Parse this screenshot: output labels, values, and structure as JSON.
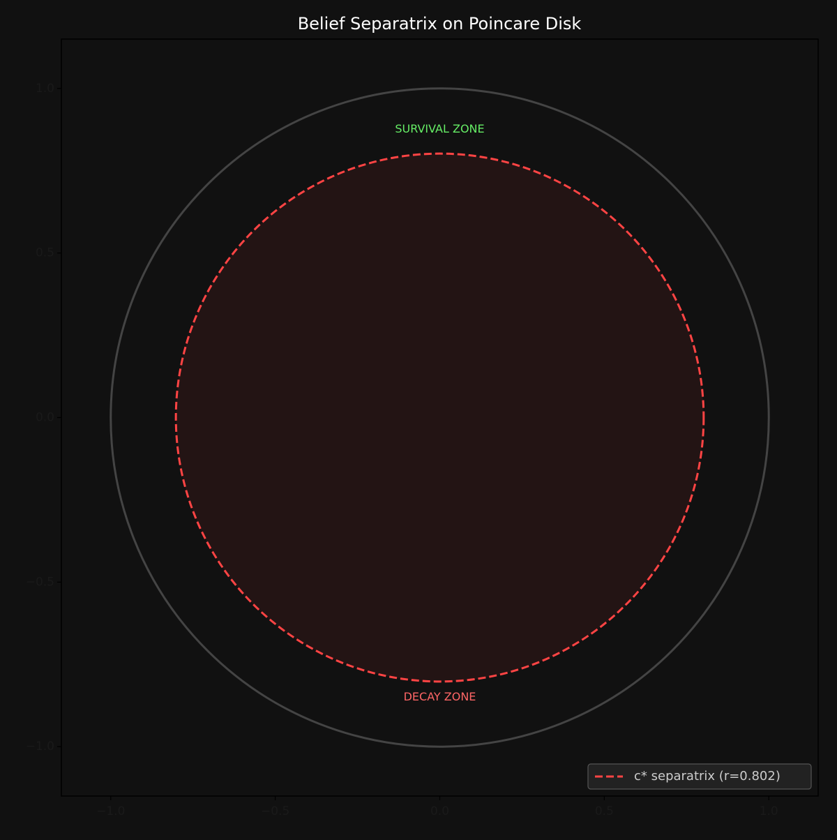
{
  "chart_data": {
    "type": "disk",
    "title": "Belief Separatrix on Poincare Disk",
    "xlim": [
      -1.15,
      1.15
    ],
    "ylim": [
      -1.15,
      1.15
    ],
    "xticks": [
      {
        "value": -1,
        "label": "−1.0"
      },
      {
        "value": -0.5,
        "label": "−0.5"
      },
      {
        "value": 0,
        "label": "0.0"
      },
      {
        "value": 0.5,
        "label": "0.5"
      },
      {
        "value": 1,
        "label": "1.0"
      }
    ],
    "yticks": [
      {
        "value": -1,
        "label": "−1.0"
      },
      {
        "value": -0.5,
        "label": "−0.5"
      },
      {
        "value": 0,
        "label": "0.0"
      },
      {
        "value": 0.5,
        "label": "0.5"
      },
      {
        "value": 1,
        "label": "1.0"
      }
    ],
    "circles": [
      {
        "radius": 1,
        "color": "#444444"
      },
      {
        "name": "c* separatrix (r=0.802)",
        "radius": 0.802,
        "color": "#ff4444",
        "dashed": true,
        "fill": true
      }
    ],
    "annotations": [
      {
        "text": "SURVIVAL ZONE",
        "x": 0,
        "y": 0.875,
        "color": "#66ee66"
      },
      {
        "text": "DECAY ZONE",
        "x": 0,
        "y": -0.85,
        "color": "#ff6666"
      }
    ],
    "legend": "lower right"
  }
}
